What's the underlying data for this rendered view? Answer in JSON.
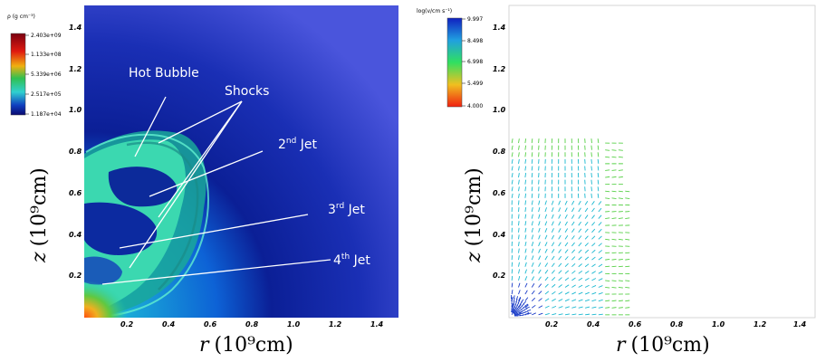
{
  "left_panel": {
    "colorbar": {
      "title": "ρ (g cm⁻³)",
      "ticks": [
        "2.403e+09",
        "1.133e+08",
        "5.339e+06",
        "2.517e+05",
        "1.187e+04"
      ]
    },
    "annotations": {
      "hot_bubble": "Hot Bubble",
      "shocks": "Shocks",
      "jet2_num": "2",
      "jet2_sup": "nd",
      "jet2_word": " Jet",
      "jet3_num": "3",
      "jet3_sup": "rd",
      "jet3_word": " Jet",
      "jet4_num": "4",
      "jet4_sup": "th",
      "jet4_word": " Jet"
    },
    "x_ticks": [
      "0.2",
      "0.4",
      "0.6",
      "0.8",
      "1.0",
      "1.2",
      "1.4"
    ],
    "y_ticks": [
      "1.4",
      "1.2",
      "1.0",
      "0.8",
      "0.6",
      "0.4",
      "0.2"
    ],
    "xlabel_var": "r",
    "xlabel_unit": "(10⁹cm)",
    "ylabel_var": "z",
    "ylabel_unit": "(10⁹cm)"
  },
  "right_panel": {
    "colorbar": {
      "title": "log(v/cm s⁻¹)",
      "ticks": [
        "9.997",
        "8.498",
        "6.998",
        "5.499",
        "4.000"
      ]
    },
    "x_ticks": [
      "0.2",
      "0.4",
      "0.6",
      "0.8",
      "1.0",
      "1.2",
      "1.4"
    ],
    "y_ticks": [
      "1.4",
      "1.2",
      "1.0",
      "0.8",
      "0.6",
      "0.4",
      "0.2"
    ],
    "xlabel_var": "r",
    "xlabel_unit": "(10⁹cm)",
    "ylabel_var": "z",
    "ylabel_unit": "(10⁹cm)"
  },
  "colors": {
    "plot_bg_dark": "#0a1a8a",
    "plot_bg_mid": "#2a4fd6",
    "plot_bg_light": "#5566e0",
    "bubble": "#2ecfa8",
    "bubble_light": "#5de8c0",
    "bubble_dark": "#1a9c8a",
    "jet_cavity": "#0c2a9a",
    "hot_core": "#f0a020",
    "annotation_text": "#ffffff",
    "vector_blue": "#1a3cc8",
    "vector_cyan": "#1ab8d0",
    "vector_green": "#58d048"
  }
}
